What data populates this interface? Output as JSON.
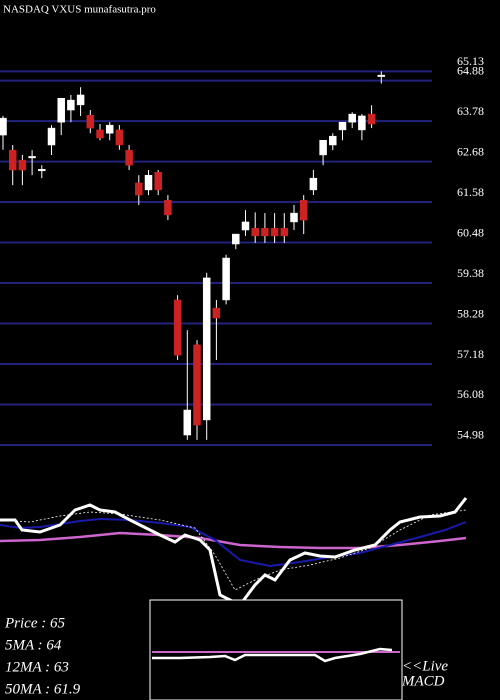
{
  "chart_data": {
    "type": "candlestick",
    "title": "NASDAQ VXUS munafasutra.pro",
    "up_color": "#ffffff",
    "down_color": "#cc2222",
    "grid": true,
    "ylim": [
      54.3,
      67.07
    ],
    "yticks": [
      65.13,
      64.88,
      63.78,
      62.68,
      61.58,
      60.48,
      59.38,
      58.28,
      57.18,
      56.08,
      54.98
    ],
    "open": [
      63.4,
      62.99,
      62.72,
      62.78,
      62.45,
      63.13,
      63.75,
      64.08,
      64.22,
      63.94,
      63.54,
      63.45,
      63.54,
      62.99,
      62.1,
      61.91,
      62.39,
      61.63,
      58.92,
      55.25,
      57.7,
      55.66,
      58.7,
      58.92,
      60.44,
      60.82,
      60.87,
      60.87,
      60.87,
      60.87,
      61.04,
      61.63,
      61.91,
      62.86,
      63.13,
      63.54,
      63.75,
      63.54,
      63.97,
      65.0
    ],
    "high": [
      63.92,
      63.13,
      62.86,
      62.99,
      62.58,
      63.67,
      64.4,
      64.49,
      64.7,
      64.08,
      63.7,
      63.75,
      63.67,
      63.13,
      62.31,
      62.45,
      62.45,
      61.77,
      59.05,
      58.1,
      57.83,
      59.66,
      58.92,
      60.15,
      60.71,
      61.36,
      61.3,
      61.28,
      61.28,
      61.28,
      61.5,
      61.77,
      62.45,
      63.26,
      63.45,
      63.75,
      64.02,
      63.97,
      64.21,
      65.13
    ],
    "low": [
      63.0,
      62.04,
      62.04,
      62.31,
      62.23,
      62.86,
      63.4,
      63.75,
      63.92,
      63.45,
      63.26,
      63.26,
      63.0,
      62.45,
      61.5,
      61.77,
      61.77,
      61.09,
      57.29,
      55.12,
      55.12,
      55.12,
      57.29,
      58.8,
      60.3,
      60.66,
      60.47,
      60.47,
      60.47,
      60.47,
      60.82,
      60.71,
      61.77,
      62.58,
      62.99,
      63.26,
      63.59,
      63.26,
      63.59,
      64.8
    ],
    "close": [
      63.86,
      62.45,
      62.45,
      62.82,
      62.47,
      63.59,
      64.4,
      64.35,
      64.49,
      63.59,
      63.32,
      63.67,
      63.13,
      62.58,
      61.77,
      62.31,
      61.91,
      61.23,
      57.42,
      55.93,
      55.52,
      59.52,
      58.43,
      60.06,
      60.71,
      61.04,
      60.66,
      60.66,
      60.66,
      60.66,
      61.28,
      61.09,
      62.23,
      63.26,
      63.37,
      63.75,
      63.97,
      63.92,
      63.7,
      65.03
    ],
    "annotations": [
      "Price   : 65",
      "5MA : 64",
      "12MA : 63",
      "50MA : 61.9"
    ],
    "macd_label": [
      "<<Live",
      "MACD"
    ]
  }
}
